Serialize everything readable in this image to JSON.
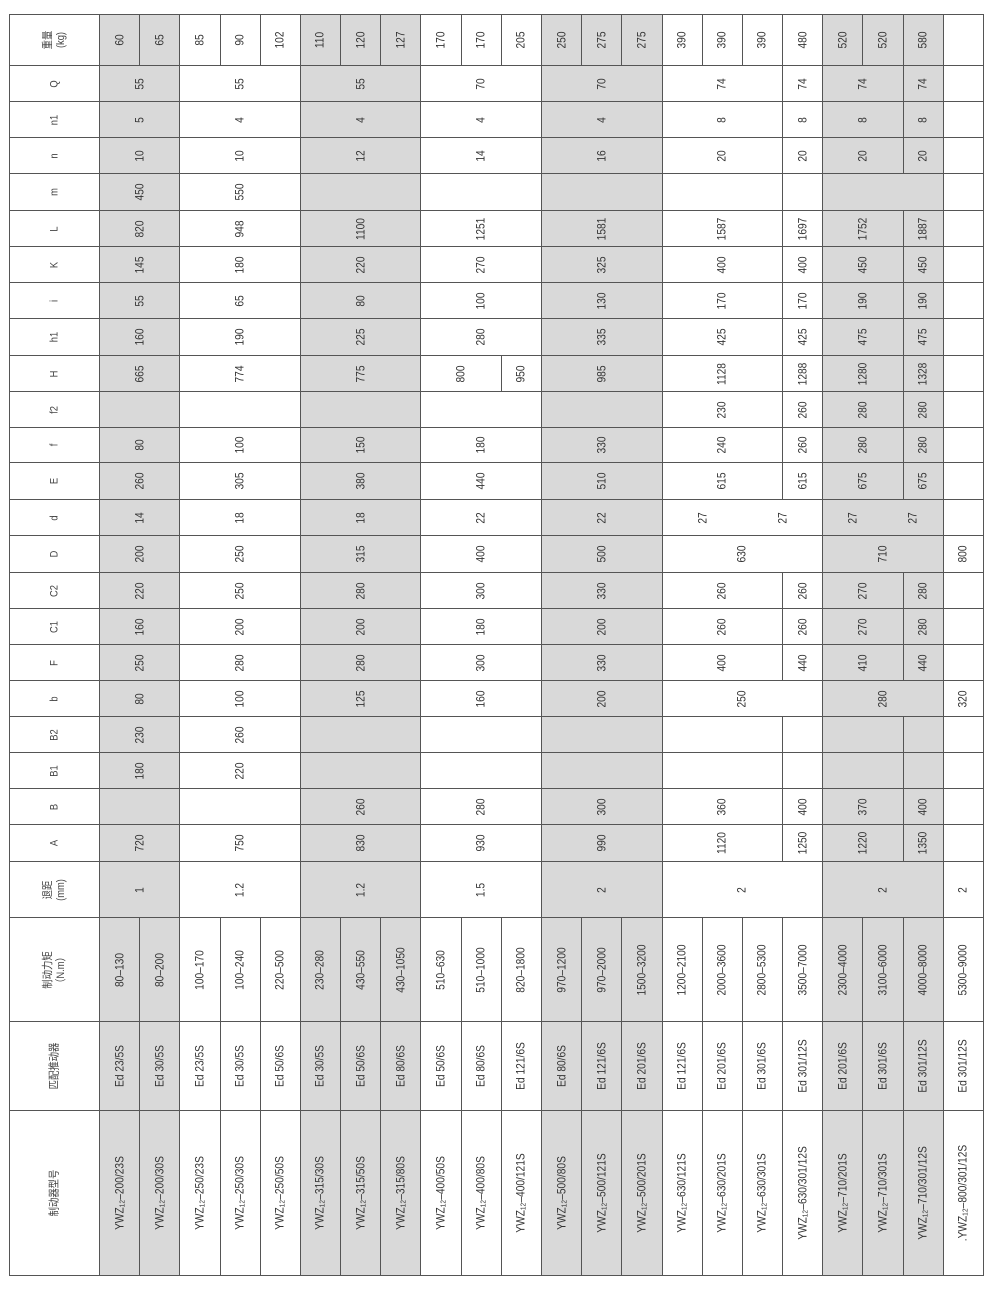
{
  "table": {
    "rows": [
      {
        "header": [
          "重量",
          "(kg)"
        ],
        "cells": [
          "60",
          "65",
          "85",
          "90",
          "102",
          "110",
          "120",
          "127",
          "170",
          "170",
          "205",
          "250",
          "275",
          "275",
          "390",
          "390",
          "390",
          "480",
          "520",
          "520",
          "580",
          ""
        ]
      },
      {
        "header": [
          "Q"
        ],
        "cells": [
          "55",
          "55",
          "55",
          "70",
          "70",
          "74",
          "74",
          "74",
          "74",
          ""
        ]
      },
      {
        "header": [
          "n1"
        ],
        "cells": [
          "5",
          "4",
          "4",
          "4",
          "4",
          "8",
          "8",
          "8",
          "8",
          ""
        ]
      },
      {
        "header": [
          "n"
        ],
        "cells": [
          "10",
          "10",
          "12",
          "14",
          "16",
          "20",
          "20",
          "20",
          "20",
          ""
        ]
      },
      {
        "header": [
          "m"
        ],
        "cells": [
          "450",
          "550",
          "",
          "",
          "",
          "",
          "",
          "",
          ""
        ]
      },
      {
        "header": [
          "L"
        ],
        "cells": [
          "820",
          "948",
          "1100",
          "1251",
          "1581",
          "1587",
          "1697",
          "1752",
          "1887",
          ""
        ]
      },
      {
        "header": [
          "K"
        ],
        "cells": [
          "145",
          "180",
          "220",
          "270",
          "325",
          "400",
          "400",
          "450",
          "450",
          ""
        ]
      },
      {
        "header": [
          "i"
        ],
        "cells": [
          "55",
          "65",
          "80",
          "100",
          "130",
          "170",
          "170",
          "190",
          "190",
          ""
        ]
      },
      {
        "header": [
          "h1"
        ],
        "cells": [
          "160",
          "190",
          "225",
          "280",
          "335",
          "425",
          "425",
          "475",
          "475",
          ""
        ]
      },
      {
        "header": [
          "H"
        ],
        "cells": [
          "665",
          "774",
          "775",
          "800",
          "950",
          "985",
          "1128",
          "1288",
          "1280",
          "1328",
          ""
        ]
      },
      {
        "header": [
          "f2"
        ],
        "cells": [
          "",
          "",
          "",
          "",
          "",
          "230",
          "260",
          "280",
          "280",
          ""
        ]
      },
      {
        "header": [
          "f"
        ],
        "cells": [
          "80",
          "100",
          "150",
          "180",
          "330",
          "240",
          "260",
          "280",
          "280",
          ""
        ]
      },
      {
        "header": [
          "E"
        ],
        "cells": [
          "260",
          "305",
          "380",
          "440",
          "510",
          "615",
          "615",
          "675",
          "675",
          ""
        ]
      },
      {
        "header": [
          "d"
        ],
        "cells": [
          "14",
          "18",
          "18",
          "22",
          "22",
          [
            "27",
            "27"
          ],
          [
            "27",
            "27"
          ],
          ""
        ]
      },
      {
        "header": [
          "D"
        ],
        "cells": [
          "200",
          "250",
          "315",
          "400",
          "500",
          "630",
          "710",
          "800"
        ]
      },
      {
        "header": [
          "C2"
        ],
        "cells": [
          "220",
          "250",
          "280",
          "300",
          "330",
          "260",
          "260",
          "270",
          "280",
          ""
        ]
      },
      {
        "header": [
          "C1"
        ],
        "cells": [
          "160",
          "200",
          "200",
          "180",
          "200",
          "260",
          "260",
          "270",
          "280",
          ""
        ]
      },
      {
        "header": [
          "F"
        ],
        "cells": [
          "250",
          "280",
          "280",
          "300",
          "330",
          "400",
          "440",
          "410",
          "440",
          ""
        ]
      },
      {
        "header": [
          "b"
        ],
        "cells": [
          "80",
          "100",
          "125",
          "160",
          "200",
          "250",
          "280",
          "320"
        ]
      },
      {
        "header": [
          "B2"
        ],
        "cells": [
          "230",
          "260",
          "",
          "",
          "",
          "",
          "",
          "",
          "",
          ""
        ]
      },
      {
        "header": [
          "B1"
        ],
        "cells": [
          "180",
          "220",
          "",
          "",
          "",
          "",
          "",
          "",
          "",
          ""
        ]
      },
      {
        "header": [
          "B"
        ],
        "cells": [
          "",
          "",
          "260",
          "280",
          "300",
          "360",
          "400",
          "370",
          "400",
          ""
        ]
      },
      {
        "header": [
          "A"
        ],
        "cells": [
          "720",
          "750",
          "830",
          "930",
          "990",
          "1120",
          "1250",
          "1220",
          "1350",
          ""
        ]
      },
      {
        "header": [
          "退距",
          "(mm)"
        ],
        "cells": [
          "1",
          "1.2",
          "1.2",
          "1.5",
          "2",
          "2",
          "2",
          "2"
        ]
      },
      {
        "header": [
          "制动力矩",
          "（N.m）"
        ],
        "cells": [
          "80–130",
          "80–200",
          "100–170",
          "100–240",
          "220–500",
          "230–280",
          "430–550",
          "430–1050",
          "510–630",
          "510–1000",
          "820–1800",
          "970–1200",
          "970–2000",
          "1500–3200",
          "1200–2100",
          "2000–3600",
          "2800–5300",
          "3500–7000",
          "2300–4000",
          "3100–6000",
          "4000–8000",
          "5300–9000"
        ]
      },
      {
        "header": [
          "匹配推动器"
        ],
        "cells": [
          "Ed 23/5S",
          "Ed 30/5S",
          "Ed 23/5S",
          "Ed 30/5S",
          "Ed 50/6S",
          "Ed 30/5S",
          "Ed 50/6S",
          "Ed 80/6S",
          "Ed 50/6S",
          "Ed 80/6S",
          "Ed 121/6S",
          "Ed 80/6S",
          "Ed 121/6S",
          "Ed 201/6S",
          "Ed 121/6S",
          "Ed 201/6S",
          "Ed 301/6S",
          "Ed 301/12S",
          "Ed 201/6S",
          "Ed 301/6S",
          "Ed 301/12S",
          "Ed 301/12S"
        ]
      },
      {
        "header": [
          "制动器型号"
        ],
        "cells": [
          "YWZ₁₂–200/23S",
          "YWZ₁₂–200/30S",
          "YWZ₁₂–250/23S",
          "YWZ₁₂–250/30S",
          "YWZ₁₂–250/50S",
          "YWZ₁₂–315/30S",
          "YWZ₁₂–315/50S",
          "YWZ₁₂–315/80S",
          "YWZ₁₂–400/50S",
          "YWZ₁₂–400/80S",
          "YWZ₁₂–400/121S",
          "YWZ₁₂–500/80S",
          "YWZ₁₂–500/121S",
          "YWZ₁₂–500/201S",
          "YWZ₁₂–630/121S",
          "YWZ₁₂–630/201S",
          "YWZ₁₂–630/301S",
          "YWZ₁₂–630/301/12S",
          "YWZ₁₂–710/201S",
          "YWZ₁₂–710/301S",
          "YWZ₁₂–710/301/12S",
          ".YWZ₁₂–800/301/12S"
        ]
      }
    ]
  },
  "colors": {
    "shade": "#d9d9d9",
    "border": "#555555"
  }
}
